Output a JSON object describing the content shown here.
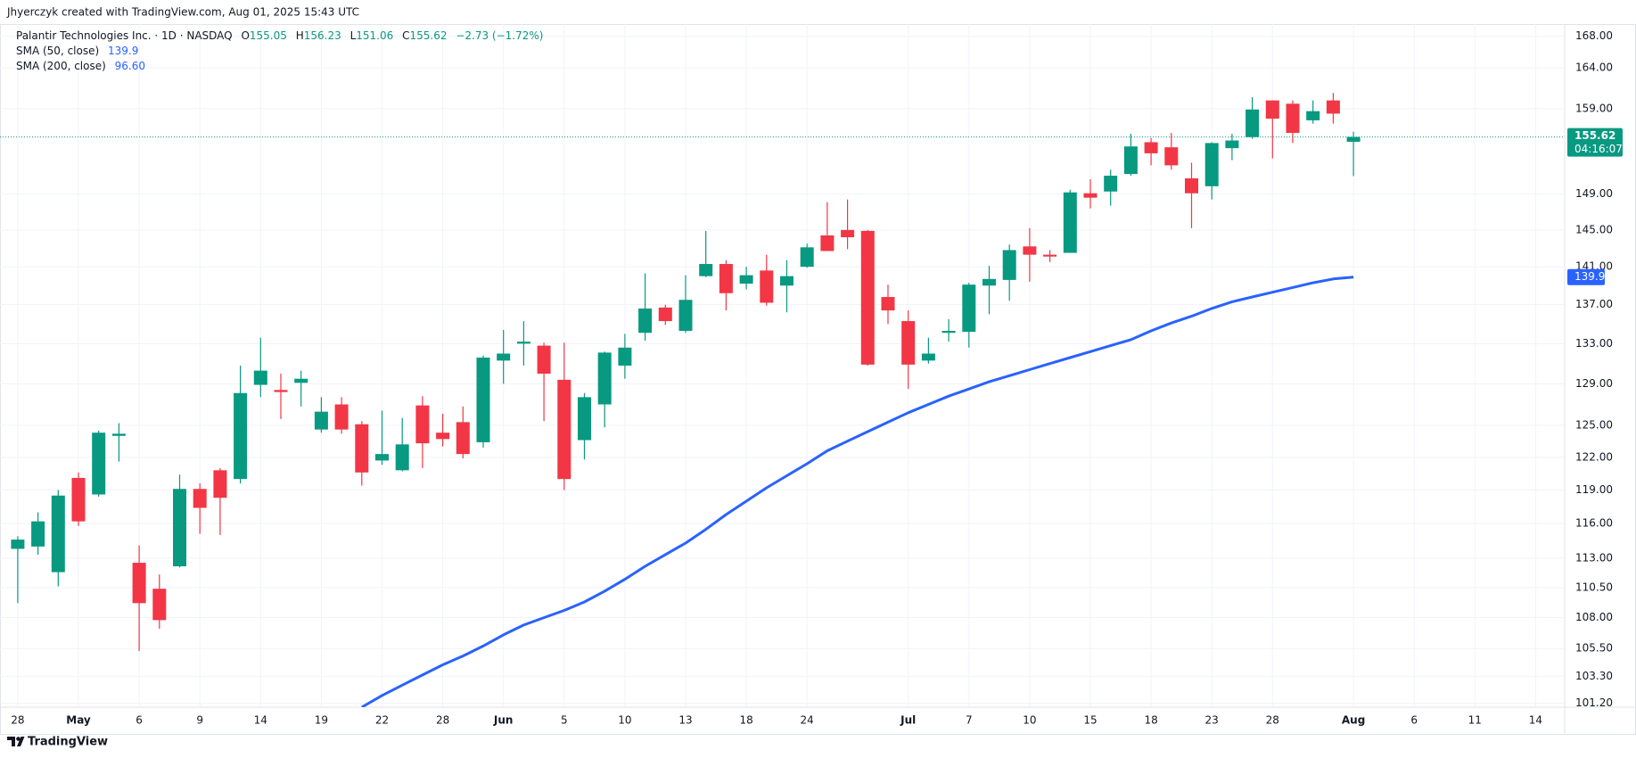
{
  "header": "Jhyerczyk created with TradingView.com, Aug 01, 2025 15:43 UTC",
  "footer": "TradingView",
  "chart_data": {
    "type": "candlestick",
    "title": "Palantir Technologies Inc. · 1D · NASDAQ",
    "ohlc_letters": [
      "O",
      "H",
      "L",
      "C"
    ],
    "change_label": "−2.73 (−1.72%)",
    "countdown": "04:16:07",
    "up_color": "#089981",
    "down_color": "#f23645",
    "log": true,
    "grid": true,
    "categories": [
      "2025-04-28",
      "2025-04-29",
      "2025-04-30",
      "2025-05-01",
      "2025-05-02",
      "2025-05-05",
      "2025-05-06",
      "2025-05-07",
      "2025-05-08",
      "2025-05-09",
      "2025-05-12",
      "2025-05-13",
      "2025-05-14",
      "2025-05-15",
      "2025-05-16",
      "2025-05-19",
      "2025-05-20",
      "2025-05-21",
      "2025-05-22",
      "2025-05-23",
      "2025-05-27",
      "2025-05-28",
      "2025-05-29",
      "2025-05-30",
      "2025-06-02",
      "2025-06-03",
      "2025-06-04",
      "2025-06-05",
      "2025-06-06",
      "2025-06-09",
      "2025-06-10",
      "2025-06-11",
      "2025-06-12",
      "2025-06-13",
      "2025-06-16",
      "2025-06-17",
      "2025-06-18",
      "2025-06-20",
      "2025-06-23",
      "2025-06-24",
      "2025-06-25",
      "2025-06-26",
      "2025-06-27",
      "2025-06-30",
      "2025-07-01",
      "2025-07-02",
      "2025-07-03",
      "2025-07-07",
      "2025-07-08",
      "2025-07-09",
      "2025-07-10",
      "2025-07-11",
      "2025-07-14",
      "2025-07-15",
      "2025-07-16",
      "2025-07-17",
      "2025-07-18",
      "2025-07-21",
      "2025-07-22",
      "2025-07-23",
      "2025-07-24",
      "2025-07-25",
      "2025-07-28",
      "2025-07-29",
      "2025-07-30",
      "2025-07-31",
      "2025-08-01"
    ],
    "open": [
      113.8,
      114.0,
      111.8,
      120.1,
      118.6,
      124.0,
      112.6,
      110.4,
      112.3,
      119.1,
      120.8,
      120.0,
      128.9,
      128.4,
      129.1,
      124.6,
      127.0,
      125.1,
      121.7,
      120.8,
      126.9,
      124.3,
      125.3,
      123.4,
      131.3,
      133.0,
      132.8,
      129.4,
      123.6,
      127.0,
      130.8,
      134.1,
      136.7,
      134.3,
      140.0,
      141.3,
      139.2,
      140.6,
      139.0,
      141.0,
      144.4,
      145.0,
      144.9,
      137.8,
      135.3,
      131.3,
      134.1,
      134.2,
      139.0,
      139.6,
      143.2,
      142.3,
      142.5,
      149.1,
      149.3,
      151.3,
      155.0,
      154.4,
      150.8,
      149.9,
      154.3,
      155.6,
      160.0,
      159.6,
      157.6,
      160.0,
      155.05
    ],
    "high": [
      114.9,
      117.0,
      119.0,
      120.6,
      124.5,
      125.2,
      114.1,
      111.6,
      120.4,
      119.6,
      121.0,
      130.8,
      133.6,
      130.0,
      130.3,
      127.7,
      127.7,
      125.4,
      126.4,
      125.7,
      127.8,
      126.1,
      126.8,
      131.8,
      134.4,
      135.3,
      133.1,
      133.1,
      128.1,
      132.2,
      134.0,
      140.3,
      137.0,
      140.1,
      144.9,
      141.7,
      141.0,
      142.3,
      141.7,
      143.5,
      148.1,
      148.4,
      145.0,
      139.1,
      136.4,
      133.6,
      135.5,
      139.3,
      141.1,
      143.4,
      145.2,
      142.8,
      149.5,
      150.7,
      151.8,
      156.0,
      155.5,
      156.1,
      152.6,
      155.0,
      156.0,
      160.4,
      160.0,
      160.0,
      160.0,
      160.9,
      156.23
    ],
    "low": [
      109.2,
      113.3,
      110.6,
      115.8,
      118.4,
      121.6,
      105.3,
      107.1,
      112.2,
      115.1,
      115.0,
      119.6,
      127.7,
      125.6,
      126.8,
      124.3,
      124.2,
      119.4,
      121.3,
      120.7,
      121.0,
      123.0,
      121.9,
      122.9,
      129.0,
      130.8,
      125.4,
      119.0,
      121.8,
      124.8,
      129.5,
      133.3,
      134.9,
      134.1,
      139.9,
      136.4,
      138.6,
      136.9,
      136.2,
      140.9,
      142.7,
      142.9,
      130.8,
      135.0,
      128.5,
      131.0,
      133.2,
      132.6,
      136.0,
      137.4,
      139.4,
      141.5,
      142.5,
      147.4,
      147.7,
      151.1,
      152.3,
      151.8,
      145.2,
      148.4,
      152.9,
      155.4,
      153.1,
      154.9,
      157.2,
      157.2,
      151.06
    ],
    "close": [
      114.6,
      116.2,
      118.5,
      116.2,
      124.3,
      124.2,
      109.2,
      107.8,
      119.1,
      117.4,
      118.3,
      128.1,
      130.3,
      128.2,
      129.5,
      126.3,
      124.6,
      120.6,
      122.3,
      123.2,
      123.3,
      123.7,
      122.3,
      131.6,
      132.0,
      133.2,
      130.0,
      120.0,
      127.7,
      132.1,
      132.6,
      136.6,
      135.3,
      137.5,
      141.3,
      138.2,
      140.1,
      137.2,
      140.0,
      143.1,
      142.7,
      144.2,
      130.9,
      136.4,
      130.9,
      132.0,
      134.3,
      139.1,
      139.7,
      142.8,
      142.3,
      142.1,
      149.2,
      148.6,
      151.1,
      154.5,
      153.7,
      152.3,
      149.1,
      154.9,
      155.2,
      158.9,
      157.8,
      156.1,
      158.7,
      158.4,
      155.62
    ],
    "series": [
      {
        "name": "SMA (50, close)",
        "color": "#2962ff",
        "values": [
          null,
          null,
          null,
          null,
          null,
          null,
          null,
          null,
          null,
          null,
          null,
          null,
          null,
          null,
          null,
          null,
          null,
          100.9,
          101.8,
          102.6,
          103.4,
          104.2,
          104.9,
          105.7,
          106.6,
          107.4,
          108.0,
          108.6,
          109.3,
          110.2,
          111.2,
          112.3,
          113.3,
          114.3,
          115.5,
          116.8,
          118.0,
          119.2,
          120.3,
          121.4,
          122.6,
          123.5,
          124.4,
          125.3,
          126.2,
          127.0,
          127.8,
          128.5,
          129.2,
          129.8,
          130.4,
          131.0,
          131.6,
          132.2,
          132.8,
          133.4,
          134.3,
          135.1,
          135.8,
          136.6,
          137.3,
          137.8,
          138.3,
          138.8,
          139.3,
          139.7,
          139.9
        ]
      },
      {
        "name": "SMA (200, close)",
        "color": "#2962ff",
        "last": {
          "value": 96.6,
          "label": "96.60"
        }
      }
    ],
    "ylim": [
      100.9,
      169.9
    ],
    "yticks": [
      {
        "value": 101.2,
        "label": "101.20"
      },
      {
        "value": 103.3,
        "label": "103.30"
      },
      {
        "value": 105.5,
        "label": "105.50"
      },
      {
        "value": 108,
        "label": "108.00"
      },
      {
        "value": 110.5,
        "label": "110.50"
      },
      {
        "value": 113,
        "label": "113.00"
      },
      {
        "value": 116,
        "label": "116.00"
      },
      {
        "value": 119,
        "label": "119.00"
      },
      {
        "value": 122,
        "label": "122.00"
      },
      {
        "value": 125,
        "label": "125.00"
      },
      {
        "value": 129,
        "label": "129.00"
      },
      {
        "value": 133,
        "label": "133.00"
      },
      {
        "value": 137,
        "label": "137.00"
      },
      {
        "value": 141,
        "label": "141.00"
      },
      {
        "value": 145,
        "label": "145.00"
      },
      {
        "value": 149,
        "label": "149.00"
      },
      {
        "value": 159,
        "label": "159.00"
      },
      {
        "value": 164,
        "label": "164.00"
      },
      {
        "value": 168,
        "label": "168.00"
      }
    ],
    "xticks": [
      {
        "value": "2025-04-28",
        "label": "28"
      },
      {
        "value": "2025-05-01",
        "label": "May"
      },
      {
        "value": "2025-05-06",
        "label": "6"
      },
      {
        "value": "2025-05-09",
        "label": "9"
      },
      {
        "value": "2025-05-14",
        "label": "14"
      },
      {
        "value": "2025-05-19",
        "label": "19"
      },
      {
        "value": "2025-05-22",
        "label": "22"
      },
      {
        "value": "2025-05-28",
        "label": "28"
      },
      {
        "value": "2025-06-02",
        "label": "Jun"
      },
      {
        "value": "2025-06-05",
        "label": "5"
      },
      {
        "value": "2025-06-10",
        "label": "10"
      },
      {
        "value": "2025-06-13",
        "label": "13"
      },
      {
        "value": "2025-06-18",
        "label": "18"
      },
      {
        "value": "2025-06-24",
        "label": "24"
      },
      {
        "value": "2025-07-01",
        "label": "Jul"
      },
      {
        "value": "2025-07-07",
        "label": "7"
      },
      {
        "value": "2025-07-10",
        "label": "10"
      },
      {
        "value": "2025-07-15",
        "label": "15"
      },
      {
        "value": "2025-07-18",
        "label": "18"
      },
      {
        "value": "2025-07-23",
        "label": "23"
      },
      {
        "value": "2025-07-28",
        "label": "28"
      },
      {
        "value": "2025-08-01",
        "label": "Aug"
      },
      {
        "value": "2025-08-06",
        "label": "6"
      },
      {
        "value": "2025-08-11",
        "label": "11"
      },
      {
        "value": "2025-08-14",
        "label": "14"
      }
    ]
  }
}
